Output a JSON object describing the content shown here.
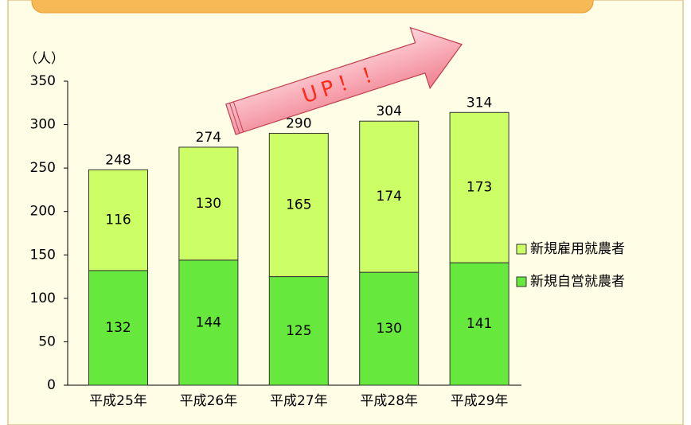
{
  "chart_data": {
    "type": "stacked_bar",
    "y_label": "（人）",
    "annotation": "UP！！",
    "categories": [
      "平成25年",
      "平成26年",
      "平成27年",
      "平成28年",
      "平成29年"
    ],
    "series": [
      {
        "name": "新規自営就農者",
        "color": "#66e83c",
        "values": [
          132,
          144,
          125,
          130,
          141
        ]
      },
      {
        "name": "新規雇用就農者",
        "color": "#ccff66",
        "values": [
          116,
          130,
          165,
          174,
          173
        ]
      }
    ],
    "totals": [
      248,
      274,
      290,
      304,
      314
    ],
    "ylim": [
      0,
      350
    ],
    "yticks": [
      0,
      50,
      100,
      150,
      200,
      250,
      300,
      350
    ]
  }
}
